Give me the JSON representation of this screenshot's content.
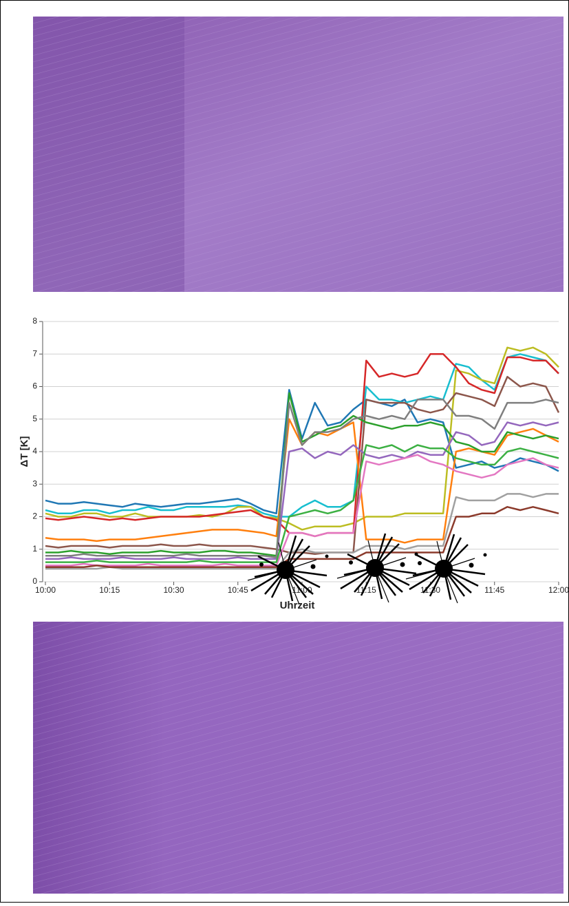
{
  "chart_data": {
    "type": "line",
    "y_label": "ΔT [K]",
    "x_label": "Uhrzeit",
    "x": [
      "10:00",
      "10:03",
      "10:06",
      "10:09",
      "10:12",
      "10:15",
      "10:18",
      "10:21",
      "10:24",
      "10:27",
      "10:30",
      "10:33",
      "10:36",
      "10:39",
      "10:42",
      "10:45",
      "10:48",
      "10:51",
      "10:54",
      "10:57",
      "11:00",
      "11:03",
      "11:06",
      "11:09",
      "11:12",
      "11:15",
      "11:18",
      "11:21",
      "11:24",
      "11:27",
      "11:30",
      "11:33",
      "11:36",
      "11:39",
      "11:42",
      "11:45",
      "11:48",
      "11:51",
      "11:54",
      "11:57",
      "12:00"
    ],
    "xticks": [
      "10:00",
      "10:15",
      "10:30",
      "10:45",
      "11:00",
      "11:15",
      "11:30",
      "11:45",
      "12:00"
    ],
    "ylim": [
      0,
      8
    ],
    "yticks": [
      0,
      1,
      2,
      3,
      4,
      5,
      6,
      7,
      8
    ],
    "grid": true,
    "series": [
      {
        "color": "#1f77b4",
        "values": [
          2.5,
          2.4,
          2.4,
          2.45,
          2.4,
          2.35,
          2.3,
          2.4,
          2.35,
          2.3,
          2.35,
          2.4,
          2.4,
          2.45,
          2.5,
          2.55,
          2.4,
          2.2,
          2.1,
          5.9,
          4.4,
          5.5,
          4.8,
          4.9,
          5.3,
          5.6,
          5.5,
          5.4,
          5.6,
          4.9,
          5.0,
          4.9,
          3.5,
          3.6,
          3.7,
          3.5,
          3.6,
          3.8,
          3.7,
          3.6,
          3.4
        ]
      },
      {
        "color": "#17becf",
        "values": [
          2.2,
          2.1,
          2.1,
          2.2,
          2.2,
          2.1,
          2.2,
          2.2,
          2.3,
          2.2,
          2.2,
          2.3,
          2.3,
          2.3,
          2.3,
          2.35,
          2.3,
          2.1,
          2.0,
          2.0,
          2.3,
          2.5,
          2.3,
          2.3,
          2.5,
          6.0,
          5.6,
          5.6,
          5.5,
          5.6,
          5.7,
          5.6,
          6.7,
          6.6,
          6.2,
          5.9,
          6.9,
          7.0,
          6.9,
          6.8,
          6.4
        ]
      },
      {
        "color": "#bcbd22",
        "values": [
          2.1,
          2.0,
          2.0,
          2.1,
          2.1,
          2.0,
          2.0,
          2.1,
          2.0,
          2.0,
          2.0,
          2.0,
          2.05,
          2.0,
          2.1,
          2.3,
          2.3,
          2.0,
          1.95,
          1.8,
          1.6,
          1.7,
          1.7,
          1.7,
          1.8,
          2.0,
          2.0,
          2.0,
          2.1,
          2.1,
          2.1,
          2.1,
          6.5,
          6.4,
          6.2,
          6.1,
          7.2,
          7.1,
          7.2,
          7.0,
          6.6
        ]
      },
      {
        "color": "#d62728",
        "values": [
          1.95,
          1.9,
          1.95,
          2.0,
          1.95,
          1.9,
          1.95,
          1.9,
          1.95,
          2.0,
          2.0,
          2.0,
          2.0,
          2.05,
          2.1,
          2.15,
          2.2,
          2.0,
          1.9,
          1.5,
          1.5,
          1.4,
          1.5,
          1.5,
          1.5,
          6.8,
          6.3,
          6.4,
          6.3,
          6.4,
          7.0,
          7.0,
          6.6,
          6.1,
          5.9,
          5.8,
          6.9,
          6.9,
          6.8,
          6.8,
          6.4
        ]
      },
      {
        "color": "#ff7f0e",
        "values": [
          1.35,
          1.3,
          1.3,
          1.3,
          1.25,
          1.3,
          1.3,
          1.3,
          1.35,
          1.4,
          1.45,
          1.5,
          1.55,
          1.6,
          1.6,
          1.6,
          1.55,
          1.5,
          1.4,
          5.0,
          4.2,
          4.6,
          4.5,
          4.7,
          4.9,
          1.3,
          1.3,
          1.3,
          1.2,
          1.3,
          1.3,
          1.3,
          4.0,
          4.1,
          4.0,
          3.9,
          4.5,
          4.6,
          4.7,
          4.5,
          4.3
        ]
      },
      {
        "color": "#8c564b",
        "values": [
          1.1,
          1.05,
          1.1,
          1.1,
          1.1,
          1.05,
          1.1,
          1.1,
          1.1,
          1.15,
          1.1,
          1.1,
          1.15,
          1.1,
          1.1,
          1.1,
          1.1,
          1.05,
          1.0,
          0.9,
          0.9,
          0.85,
          0.9,
          0.9,
          0.9,
          5.6,
          5.5,
          5.5,
          5.5,
          5.3,
          5.2,
          5.3,
          5.8,
          5.7,
          5.6,
          5.4,
          6.3,
          6.0,
          6.1,
          6.0,
          5.2
        ]
      },
      {
        "color": "#2ca02c",
        "values": [
          0.9,
          0.9,
          0.95,
          0.9,
          0.9,
          0.85,
          0.9,
          0.9,
          0.9,
          0.95,
          0.9,
          0.9,
          0.9,
          0.95,
          0.95,
          0.9,
          0.9,
          0.85,
          0.8,
          5.8,
          4.3,
          4.5,
          4.7,
          4.8,
          5.1,
          4.9,
          4.8,
          4.7,
          4.8,
          4.8,
          4.9,
          4.8,
          4.3,
          4.2,
          4.0,
          4.0,
          4.6,
          4.5,
          4.4,
          4.5,
          4.4
        ]
      },
      {
        "color": "#9467bd",
        "values": [
          0.7,
          0.7,
          0.75,
          0.7,
          0.7,
          0.7,
          0.75,
          0.7,
          0.7,
          0.7,
          0.75,
          0.7,
          0.7,
          0.7,
          0.7,
          0.75,
          0.7,
          0.7,
          0.7,
          4.0,
          4.1,
          3.8,
          4.0,
          3.9,
          4.2,
          3.9,
          3.8,
          3.9,
          3.8,
          4.0,
          3.9,
          3.9,
          4.6,
          4.5,
          4.2,
          4.3,
          4.9,
          4.8,
          4.9,
          4.8,
          4.9
        ]
      },
      {
        "color": "#7f7f7f",
        "values": [
          0.8,
          0.8,
          0.8,
          0.85,
          0.8,
          0.8,
          0.8,
          0.8,
          0.8,
          0.8,
          0.8,
          0.85,
          0.8,
          0.8,
          0.8,
          0.8,
          0.8,
          0.8,
          0.75,
          5.5,
          4.2,
          4.6,
          4.6,
          4.7,
          5.0,
          5.1,
          5.0,
          5.1,
          5.0,
          5.6,
          5.6,
          5.6,
          5.1,
          5.1,
          5.0,
          4.7,
          5.5,
          5.5,
          5.5,
          5.6,
          5.5
        ]
      },
      {
        "color": "#e377c2",
        "values": [
          0.5,
          0.5,
          0.5,
          0.55,
          0.5,
          0.5,
          0.5,
          0.5,
          0.55,
          0.5,
          0.5,
          0.5,
          0.5,
          0.5,
          0.55,
          0.5,
          0.5,
          0.5,
          0.5,
          1.5,
          1.5,
          1.4,
          1.5,
          1.5,
          1.5,
          3.7,
          3.6,
          3.7,
          3.8,
          3.9,
          3.7,
          3.6,
          3.4,
          3.3,
          3.2,
          3.3,
          3.6,
          3.7,
          3.8,
          3.6,
          3.5
        ]
      },
      {
        "color": "#3cb043",
        "values": [
          0.6,
          0.6,
          0.6,
          0.6,
          0.65,
          0.6,
          0.6,
          0.6,
          0.6,
          0.6,
          0.6,
          0.6,
          0.65,
          0.6,
          0.6,
          0.6,
          0.6,
          0.6,
          0.6,
          2.0,
          2.1,
          2.2,
          2.1,
          2.2,
          2.5,
          4.2,
          4.1,
          4.2,
          4.0,
          4.2,
          4.1,
          4.1,
          3.8,
          3.7,
          3.6,
          3.6,
          4.0,
          4.1,
          4.0,
          3.9,
          3.8
        ]
      },
      {
        "color": "#a0a0a0",
        "values": [
          0.4,
          0.4,
          0.4,
          0.4,
          0.4,
          0.45,
          0.4,
          0.4,
          0.4,
          0.4,
          0.4,
          0.4,
          0.4,
          0.4,
          0.4,
          0.4,
          0.4,
          0.4,
          0.4,
          0.9,
          1.0,
          0.9,
          0.9,
          0.9,
          0.9,
          1.1,
          1.1,
          1.1,
          1.0,
          1.1,
          1.1,
          1.1,
          2.6,
          2.5,
          2.5,
          2.5,
          2.7,
          2.7,
          2.6,
          2.7,
          2.7
        ]
      },
      {
        "color": "#8b3a2b",
        "values": [
          0.45,
          0.45,
          0.45,
          0.45,
          0.5,
          0.45,
          0.45,
          0.45,
          0.45,
          0.45,
          0.45,
          0.45,
          0.45,
          0.45,
          0.45,
          0.45,
          0.45,
          0.45,
          0.45,
          0.7,
          0.7,
          0.7,
          0.7,
          0.7,
          0.7,
          0.9,
          0.9,
          0.9,
          0.9,
          0.9,
          0.9,
          0.9,
          2.0,
          2.0,
          2.1,
          2.1,
          2.3,
          2.2,
          2.3,
          2.2,
          2.1
        ]
      }
    ]
  }
}
